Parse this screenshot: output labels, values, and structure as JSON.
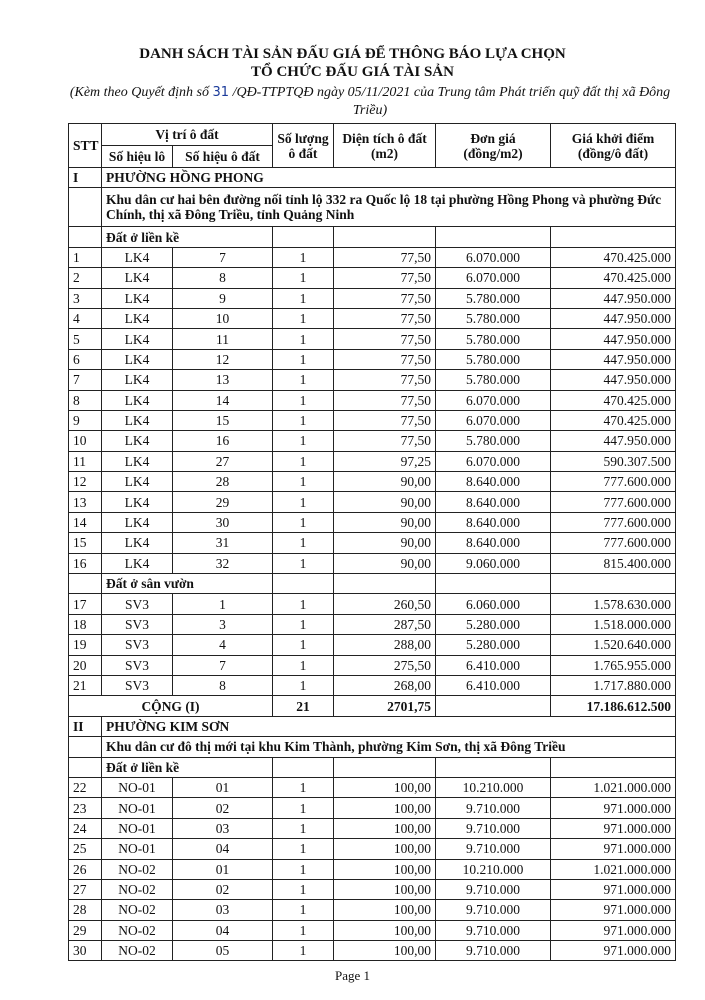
{
  "header": {
    "title_line1": "DANH SÁCH TÀI SẢN ĐẤU GIÁ ĐỂ THÔNG BÁO LỰA CHỌN",
    "title_line2": "TỔ CHỨC ĐẤU GIÁ TÀI SẢN",
    "subtitle_before": "(Kèm theo Quyết định số",
    "subtitle_number": "31",
    "subtitle_after": "/QĐ-TTPTQĐ ngày 05/11/2021 của Trung tâm Phát triển quỹ đất thị xã Đông Triều)"
  },
  "table": {
    "columns": {
      "stt": "STT",
      "location": "Vị trí ô đất",
      "lot": "Số hiệu lô",
      "plot": "Số hiệu ô đất",
      "count": "Số lượng ô đất",
      "area": "Diện tích ô đất (m2)",
      "unit_price": "Đơn giá (đồng/m2)",
      "start_price": "Giá khởi điểm (đồng/ô đất)"
    },
    "sections": [
      {
        "stt": "I",
        "name": "PHƯỜNG HỒNG PHONG",
        "area": "Khu dân cư hai bên đường nối tỉnh lộ 332 ra Quốc lộ 18 tại phường Hồng Phong và phường Đức Chính, thị xã Đông Triều, tỉnh Quảng Ninh",
        "groups": [
          {
            "name": "Đất ở liền kề",
            "rows": [
              [
                "1",
                "LK4",
                "7",
                "1",
                "77,50",
                "6.070.000",
                "470.425.000"
              ],
              [
                "2",
                "LK4",
                "8",
                "1",
                "77,50",
                "6.070.000",
                "470.425.000"
              ],
              [
                "3",
                "LK4",
                "9",
                "1",
                "77,50",
                "5.780.000",
                "447.950.000"
              ],
              [
                "4",
                "LK4",
                "10",
                "1",
                "77,50",
                "5.780.000",
                "447.950.000"
              ],
              [
                "5",
                "LK4",
                "11",
                "1",
                "77,50",
                "5.780.000",
                "447.950.000"
              ],
              [
                "6",
                "LK4",
                "12",
                "1",
                "77,50",
                "5.780.000",
                "447.950.000"
              ],
              [
                "7",
                "LK4",
                "13",
                "1",
                "77,50",
                "5.780.000",
                "447.950.000"
              ],
              [
                "8",
                "LK4",
                "14",
                "1",
                "77,50",
                "6.070.000",
                "470.425.000"
              ],
              [
                "9",
                "LK4",
                "15",
                "1",
                "77,50",
                "6.070.000",
                "470.425.000"
              ],
              [
                "10",
                "LK4",
                "16",
                "1",
                "77,50",
                "5.780.000",
                "447.950.000"
              ],
              [
                "11",
                "LK4",
                "27",
                "1",
                "97,25",
                "6.070.000",
                "590.307.500"
              ],
              [
                "12",
                "LK4",
                "28",
                "1",
                "90,00",
                "8.640.000",
                "777.600.000"
              ],
              [
                "13",
                "LK4",
                "29",
                "1",
                "90,00",
                "8.640.000",
                "777.600.000"
              ],
              [
                "14",
                "LK4",
                "30",
                "1",
                "90,00",
                "8.640.000",
                "777.600.000"
              ],
              [
                "15",
                "LK4",
                "31",
                "1",
                "90,00",
                "8.640.000",
                "777.600.000"
              ],
              [
                "16",
                "LK4",
                "32",
                "1",
                "90,00",
                "9.060.000",
                "815.400.000"
              ]
            ]
          },
          {
            "name": "Đất ở sân vườn",
            "rows": [
              [
                "17",
                "SV3",
                "1",
                "1",
                "260,50",
                "6.060.000",
                "1.578.630.000"
              ],
              [
                "18",
                "SV3",
                "3",
                "1",
                "287,50",
                "5.280.000",
                "1.518.000.000"
              ],
              [
                "19",
                "SV3",
                "4",
                "1",
                "288,00",
                "5.280.000",
                "1.520.640.000"
              ],
              [
                "20",
                "SV3",
                "7",
                "1",
                "275,50",
                "6.410.000",
                "1.765.955.000"
              ],
              [
                "21",
                "SV3",
                "8",
                "1",
                "268,00",
                "6.410.000",
                "1.717.880.000"
              ]
            ]
          }
        ],
        "total": {
          "label": "CỘNG (I)",
          "count": "21",
          "area": "2701,75",
          "start_price": "17.186.612.500"
        }
      },
      {
        "stt": "II",
        "name": "PHƯỜNG KIM SƠN",
        "area": "Khu dân cư đô thị mới tại khu Kim Thành, phường Kim Sơn, thị xã Đông Triều",
        "groups": [
          {
            "name": "Đất ở liền kề",
            "rows": [
              [
                "22",
                "NO-01",
                "01",
                "1",
                "100,00",
                "10.210.000",
                "1.021.000.000"
              ],
              [
                "23",
                "NO-01",
                "02",
                "1",
                "100,00",
                "9.710.000",
                "971.000.000"
              ],
              [
                "24",
                "NO-01",
                "03",
                "1",
                "100,00",
                "9.710.000",
                "971.000.000"
              ],
              [
                "25",
                "NO-01",
                "04",
                "1",
                "100,00",
                "9.710.000",
                "971.000.000"
              ],
              [
                "26",
                "NO-02",
                "01",
                "1",
                "100,00",
                "10.210.000",
                "1.021.000.000"
              ],
              [
                "27",
                "NO-02",
                "02",
                "1",
                "100,00",
                "9.710.000",
                "971.000.000"
              ],
              [
                "28",
                "NO-02",
                "03",
                "1",
                "100,00",
                "9.710.000",
                "971.000.000"
              ],
              [
                "29",
                "NO-02",
                "04",
                "1",
                "100,00",
                "9.710.000",
                "971.000.000"
              ],
              [
                "30",
                "NO-02",
                "05",
                "1",
                "100,00",
                "9.710.000",
                "971.000.000"
              ]
            ]
          }
        ]
      }
    ]
  },
  "footer": {
    "page": "Page 1"
  }
}
